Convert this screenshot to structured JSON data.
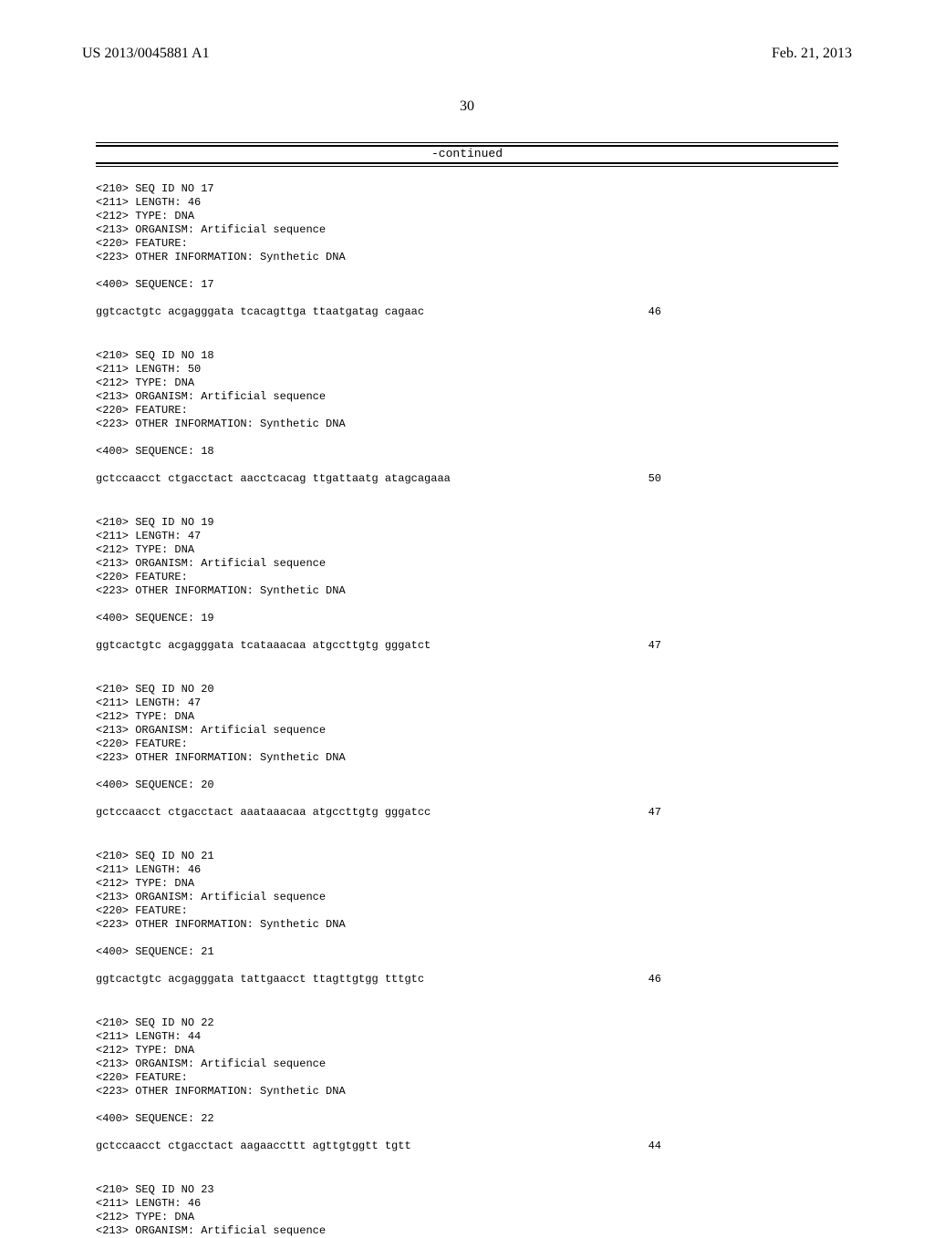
{
  "header": {
    "publication_number": "US 2013/0045881 A1",
    "publication_date": "Feb. 21, 2013"
  },
  "page_number": "30",
  "continued_label": "-continued",
  "sequences": [
    {
      "meta": [
        "<210> SEQ ID NO 17",
        "<211> LENGTH: 46",
        "<212> TYPE: DNA",
        "<213> ORGANISM: Artificial sequence",
        "<220> FEATURE:",
        "<223> OTHER INFORMATION: Synthetic DNA"
      ],
      "seq_header": "<400> SEQUENCE: 17",
      "seq_text": "ggtcactgtc acgagggata tcacagttga ttaatgatag cagaac",
      "seq_num": "46"
    },
    {
      "meta": [
        "<210> SEQ ID NO 18",
        "<211> LENGTH: 50",
        "<212> TYPE: DNA",
        "<213> ORGANISM: Artificial sequence",
        "<220> FEATURE:",
        "<223> OTHER INFORMATION: Synthetic DNA"
      ],
      "seq_header": "<400> SEQUENCE: 18",
      "seq_text": "gctccaacct ctgacctact aacctcacag ttgattaatg atagcagaaa",
      "seq_num": "50"
    },
    {
      "meta": [
        "<210> SEQ ID NO 19",
        "<211> LENGTH: 47",
        "<212> TYPE: DNA",
        "<213> ORGANISM: Artificial sequence",
        "<220> FEATURE:",
        "<223> OTHER INFORMATION: Synthetic DNA"
      ],
      "seq_header": "<400> SEQUENCE: 19",
      "seq_text": "ggtcactgtc acgagggata tcataaacaa atgccttgtg gggatct",
      "seq_num": "47"
    },
    {
      "meta": [
        "<210> SEQ ID NO 20",
        "<211> LENGTH: 47",
        "<212> TYPE: DNA",
        "<213> ORGANISM: Artificial sequence",
        "<220> FEATURE:",
        "<223> OTHER INFORMATION: Synthetic DNA"
      ],
      "seq_header": "<400> SEQUENCE: 20",
      "seq_text": "gctccaacct ctgacctact aaataaacaa atgccttgtg gggatcc",
      "seq_num": "47"
    },
    {
      "meta": [
        "<210> SEQ ID NO 21",
        "<211> LENGTH: 46",
        "<212> TYPE: DNA",
        "<213> ORGANISM: Artificial sequence",
        "<220> FEATURE:",
        "<223> OTHER INFORMATION: Synthetic DNA"
      ],
      "seq_header": "<400> SEQUENCE: 21",
      "seq_text": "ggtcactgtc acgagggata tattgaacct ttagttgtgg tttgtc",
      "seq_num": "46"
    },
    {
      "meta": [
        "<210> SEQ ID NO 22",
        "<211> LENGTH: 44",
        "<212> TYPE: DNA",
        "<213> ORGANISM: Artificial sequence",
        "<220> FEATURE:",
        "<223> OTHER INFORMATION: Synthetic DNA"
      ],
      "seq_header": "<400> SEQUENCE: 22",
      "seq_text": "gctccaacct ctgacctact aagaaccttt agttgtggtt tgtt",
      "seq_num": "44"
    },
    {
      "meta": [
        "<210> SEQ ID NO 23",
        "<211> LENGTH: 46",
        "<212> TYPE: DNA",
        "<213> ORGANISM: Artificial sequence"
      ],
      "seq_header": null,
      "seq_text": null,
      "seq_num": null
    }
  ]
}
